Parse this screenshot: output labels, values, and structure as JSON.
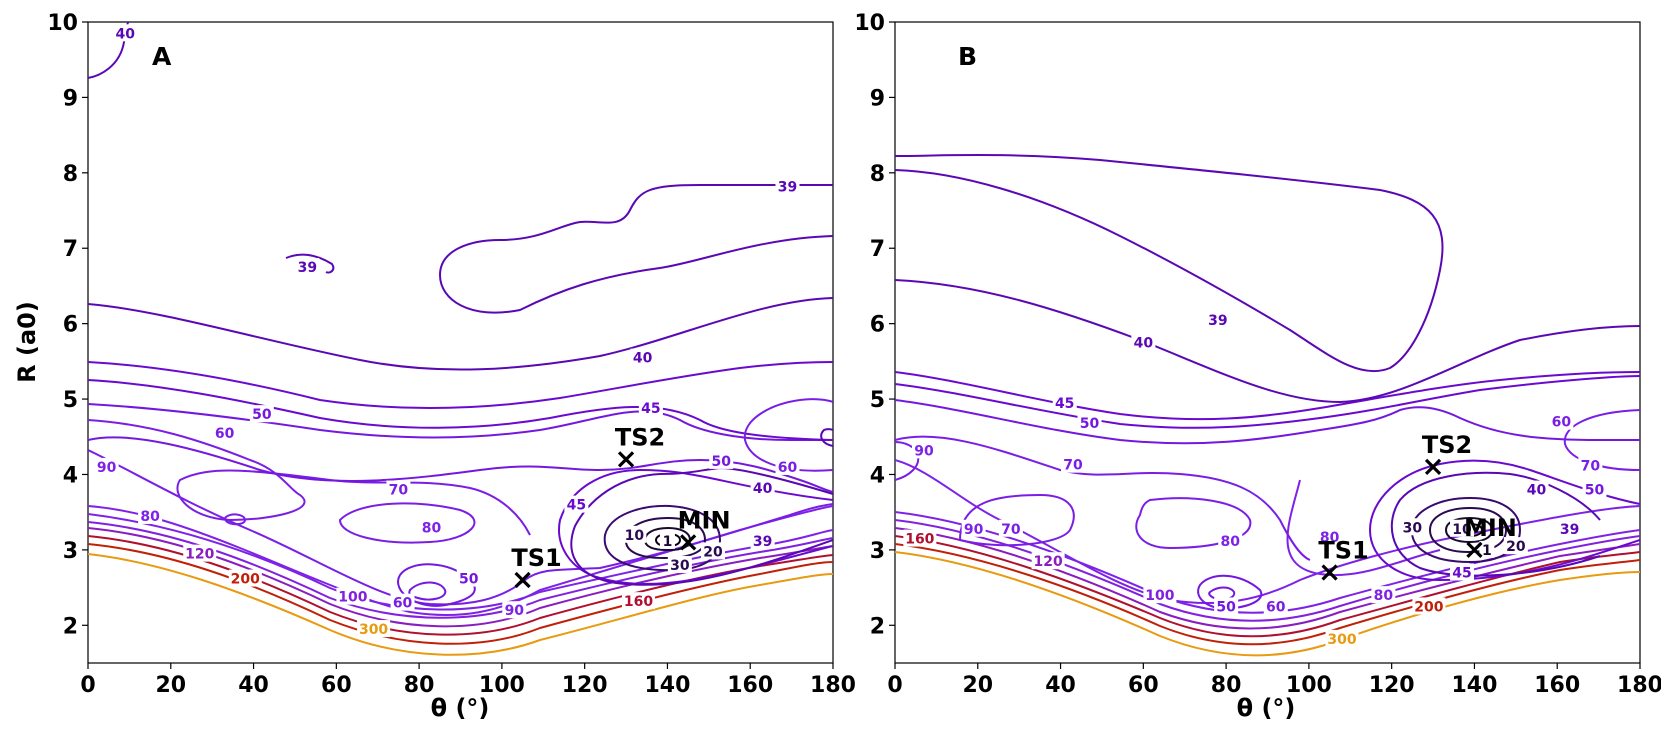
{
  "chart_data": [
    {
      "type": "contour",
      "panel_label": "A",
      "xlabel": "θ (°)",
      "ylabel": "R (a0)",
      "xlim": [
        0,
        180
      ],
      "ylim": [
        1.5,
        10
      ],
      "xticks": [
        0,
        20,
        40,
        60,
        80,
        100,
        120,
        140,
        160,
        180
      ],
      "yticks": [
        2,
        3,
        4,
        5,
        6,
        7,
        8,
        9,
        10
      ],
      "points": [
        {
          "label": "TS1",
          "x": 105,
          "y": 2.6
        },
        {
          "label": "TS2",
          "x": 130,
          "y": 4.2
        },
        {
          "label": "MIN",
          "x": 145,
          "y": 3.1
        }
      ],
      "contour_labels": [
        {
          "text": "40",
          "x": 9,
          "y": 9.85,
          "color": "#5a08b4"
        },
        {
          "text": "39",
          "x": 53,
          "y": 6.75,
          "color": "#5a08b4"
        },
        {
          "text": "39",
          "x": 169,
          "y": 7.82,
          "color": "#5a08b4"
        },
        {
          "text": "40",
          "x": 134,
          "y": 5.55,
          "color": "#5a08b4"
        },
        {
          "text": "45",
          "x": 136,
          "y": 4.88,
          "color": "#6a0ad0"
        },
        {
          "text": "50",
          "x": 42,
          "y": 4.8,
          "color": "#7418e0"
        },
        {
          "text": "60",
          "x": 33,
          "y": 4.55,
          "color": "#7a1ee6"
        },
        {
          "text": "90",
          "x": 4.5,
          "y": 4.1,
          "color": "#7e22e8"
        },
        {
          "text": "70",
          "x": 75,
          "y": 3.8,
          "color": "#7a1ee6"
        },
        {
          "text": "80",
          "x": 15,
          "y": 3.45,
          "color": "#7e22e8"
        },
        {
          "text": "80",
          "x": 83,
          "y": 3.3,
          "color": "#7e22e8"
        },
        {
          "text": "120",
          "x": 27,
          "y": 2.95,
          "color": "#8a1cc0"
        },
        {
          "text": "200",
          "x": 38,
          "y": 2.62,
          "color": "#c02008"
        },
        {
          "text": "100",
          "x": 64,
          "y": 2.38,
          "color": "#8220e0"
        },
        {
          "text": "60",
          "x": 76,
          "y": 2.3,
          "color": "#7a1ee6"
        },
        {
          "text": "50",
          "x": 92,
          "y": 2.62,
          "color": "#7418e0"
        },
        {
          "text": "90",
          "x": 103,
          "y": 2.2,
          "color": "#7e22e8"
        },
        {
          "text": "300",
          "x": 69,
          "y": 1.95,
          "color": "#e89a10"
        },
        {
          "text": "160",
          "x": 133,
          "y": 2.32,
          "color": "#b01030"
        },
        {
          "text": "45",
          "x": 118,
          "y": 3.6,
          "color": "#6a0ad0"
        },
        {
          "text": "50",
          "x": 153,
          "y": 4.18,
          "color": "#7418e0"
        },
        {
          "text": "60",
          "x": 169,
          "y": 4.1,
          "color": "#7a1ee6"
        },
        {
          "text": "40",
          "x": 163,
          "y": 3.82,
          "color": "#5a08b4"
        },
        {
          "text": "10",
          "x": 132,
          "y": 3.2,
          "color": "#2a0a50"
        },
        {
          "text": "1",
          "x": 140,
          "y": 3.12,
          "color": "#1a0a30"
        },
        {
          "text": "20",
          "x": 151,
          "y": 2.98,
          "color": "#2a0a50"
        },
        {
          "text": "30",
          "x": 143,
          "y": 2.8,
          "color": "#2a0a50"
        },
        {
          "text": "39",
          "x": 163,
          "y": 3.12,
          "color": "#5a08b4"
        }
      ]
    },
    {
      "type": "contour",
      "panel_label": "B",
      "xlabel": "θ (°)",
      "ylabel": "",
      "xlim": [
        0,
        180
      ],
      "ylim": [
        1.5,
        10
      ],
      "xticks": [
        0,
        20,
        40,
        60,
        80,
        100,
        120,
        140,
        160,
        180
      ],
      "yticks": [
        2,
        3,
        4,
        5,
        6,
        7,
        8,
        9,
        10
      ],
      "points": [
        {
          "label": "TS1",
          "x": 105,
          "y": 2.7
        },
        {
          "label": "TS2",
          "x": 130,
          "y": 4.1
        },
        {
          "label": "MIN",
          "x": 140,
          "y": 3.0
        }
      ],
      "contour_labels": [
        {
          "text": "39",
          "x": 78,
          "y": 6.05,
          "color": "#5a08b4"
        },
        {
          "text": "40",
          "x": 60,
          "y": 5.75,
          "color": "#5a08b4"
        },
        {
          "text": "45",
          "x": 41,
          "y": 4.95,
          "color": "#6a0ad0"
        },
        {
          "text": "50",
          "x": 47,
          "y": 4.68,
          "color": "#7418e0"
        },
        {
          "text": "90",
          "x": 7,
          "y": 4.32,
          "color": "#7e22e8"
        },
        {
          "text": "70",
          "x": 43,
          "y": 4.13,
          "color": "#7a1ee6"
        },
        {
          "text": "90",
          "x": 19,
          "y": 3.28,
          "color": "#7e22e8"
        },
        {
          "text": "70",
          "x": 28,
          "y": 3.28,
          "color": "#7a1ee6"
        },
        {
          "text": "160",
          "x": 6,
          "y": 3.15,
          "color": "#b01030"
        },
        {
          "text": "120",
          "x": 37,
          "y": 2.85,
          "color": "#8a1cc0"
        },
        {
          "text": "80",
          "x": 81,
          "y": 3.12,
          "color": "#7e22e8"
        },
        {
          "text": "100",
          "x": 64,
          "y": 2.4,
          "color": "#8220e0"
        },
        {
          "text": "50",
          "x": 80,
          "y": 2.25,
          "color": "#7418e0"
        },
        {
          "text": "60",
          "x": 92,
          "y": 2.25,
          "color": "#7a1ee6"
        },
        {
          "text": "80",
          "x": 105,
          "y": 3.17,
          "color": "#7e22e8"
        },
        {
          "text": "80",
          "x": 118,
          "y": 2.4,
          "color": "#7e22e8"
        },
        {
          "text": "300",
          "x": 108,
          "y": 1.82,
          "color": "#e89a10"
        },
        {
          "text": "200",
          "x": 129,
          "y": 2.25,
          "color": "#c02008"
        },
        {
          "text": "30",
          "x": 125,
          "y": 3.3,
          "color": "#2a0a50"
        },
        {
          "text": "10",
          "x": 137,
          "y": 3.28,
          "color": "#2a0a50"
        },
        {
          "text": "1",
          "x": 143,
          "y": 3.0,
          "color": "#1a0a30"
        },
        {
          "text": "20",
          "x": 150,
          "y": 3.05,
          "color": "#2a0a50"
        },
        {
          "text": "40",
          "x": 155,
          "y": 3.8,
          "color": "#5a08b4"
        },
        {
          "text": "50",
          "x": 169,
          "y": 3.8,
          "color": "#7418e0"
        },
        {
          "text": "60",
          "x": 161,
          "y": 4.7,
          "color": "#7a1ee6"
        },
        {
          "text": "70",
          "x": 168,
          "y": 4.12,
          "color": "#7a1ee6"
        },
        {
          "text": "39",
          "x": 163,
          "y": 3.28,
          "color": "#5a08b4"
        },
        {
          "text": "45",
          "x": 137,
          "y": 2.7,
          "color": "#6a0ad0"
        }
      ]
    }
  ]
}
